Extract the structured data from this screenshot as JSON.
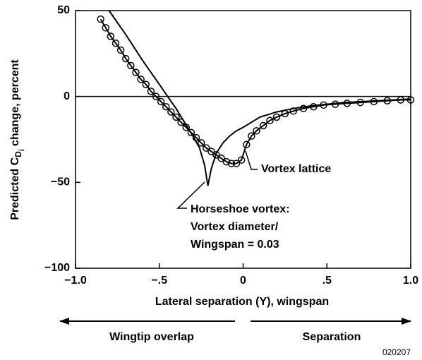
{
  "chart_data": {
    "type": "line",
    "x_label": "Lateral separation (Y), wingspan",
    "y_label": {
      "prefix": "Predicted C",
      "sub": "D",
      "subsub": "i",
      "suffix": " change, percent"
    },
    "xlim": [
      -1.0,
      1.0
    ],
    "ylim": [
      -100,
      50
    ],
    "xticks": [
      {
        "value": -1.0,
        "label": "−1.0"
      },
      {
        "value": -0.5,
        "label": "−.5"
      },
      0,
      {
        "value": 0.5,
        "label": ".5"
      },
      {
        "value": 1.0,
        "label": "1.0"
      }
    ],
    "yticks": [
      {
        "value": -100,
        "label": "−100"
      },
      {
        "value": -50,
        "label": "−50"
      },
      0,
      50
    ],
    "series": [
      {
        "name": "Horseshoe vortex",
        "color": "#000000",
        "marker": "none",
        "x": [
          -0.8,
          -0.7,
          -0.6,
          -0.5,
          -0.45,
          -0.4,
          -0.35,
          -0.3,
          -0.26,
          -0.23,
          -0.21,
          -0.19,
          -0.16,
          -0.12,
          -0.08,
          -0.04,
          0,
          0.05,
          0.1,
          0.2,
          0.3,
          0.4,
          0.5,
          0.6,
          0.7,
          0.8,
          0.9,
          1.0
        ],
        "values": [
          50,
          36,
          21,
          7,
          0,
          -7,
          -15,
          -23,
          -30,
          -40,
          -52,
          -42,
          -33,
          -27,
          -23,
          -20,
          -18,
          -15,
          -12,
          -9,
          -7,
          -5.5,
          -4.5,
          -3.5,
          -3,
          -2.5,
          -2,
          -1.5
        ]
      },
      {
        "name": "Vortex lattice",
        "color": "#000000",
        "marker": "circle",
        "x": [
          -0.85,
          -0.82,
          -0.79,
          -0.76,
          -0.73,
          -0.7,
          -0.67,
          -0.64,
          -0.61,
          -0.58,
          -0.55,
          -0.52,
          -0.49,
          -0.46,
          -0.43,
          -0.4,
          -0.37,
          -0.34,
          -0.31,
          -0.28,
          -0.25,
          -0.22,
          -0.19,
          -0.16,
          -0.13,
          -0.1,
          -0.07,
          -0.04,
          -0.01,
          0.02,
          0.05,
          0.08,
          0.12,
          0.16,
          0.2,
          0.25,
          0.3,
          0.36,
          0.42,
          0.48,
          0.55,
          0.62,
          0.7,
          0.78,
          0.86,
          0.94,
          1.0
        ],
        "values": [
          45,
          40,
          35,
          31,
          27,
          22,
          18,
          14,
          10,
          7,
          3,
          0,
          -3,
          -6,
          -9,
          -12,
          -15,
          -18,
          -21,
          -24,
          -27,
          -30,
          -32,
          -34,
          -36,
          -38,
          -39,
          -39,
          -37,
          -28,
          -23,
          -20,
          -17,
          -14,
          -12,
          -10,
          -8.5,
          -7,
          -6,
          -5,
          -4.5,
          -4,
          -3.5,
          -3,
          -2.5,
          -2,
          -2
        ]
      }
    ],
    "annotations": {
      "vortex_lattice": "Vortex lattice",
      "horseshoe": [
        "Horseshoe vortex:",
        "Vortex diameter/",
        "Wingspan = 0.03"
      ]
    },
    "direction_labels": {
      "left": "Wingtip overlap",
      "right": "Separation"
    },
    "figure_number": "020207"
  }
}
